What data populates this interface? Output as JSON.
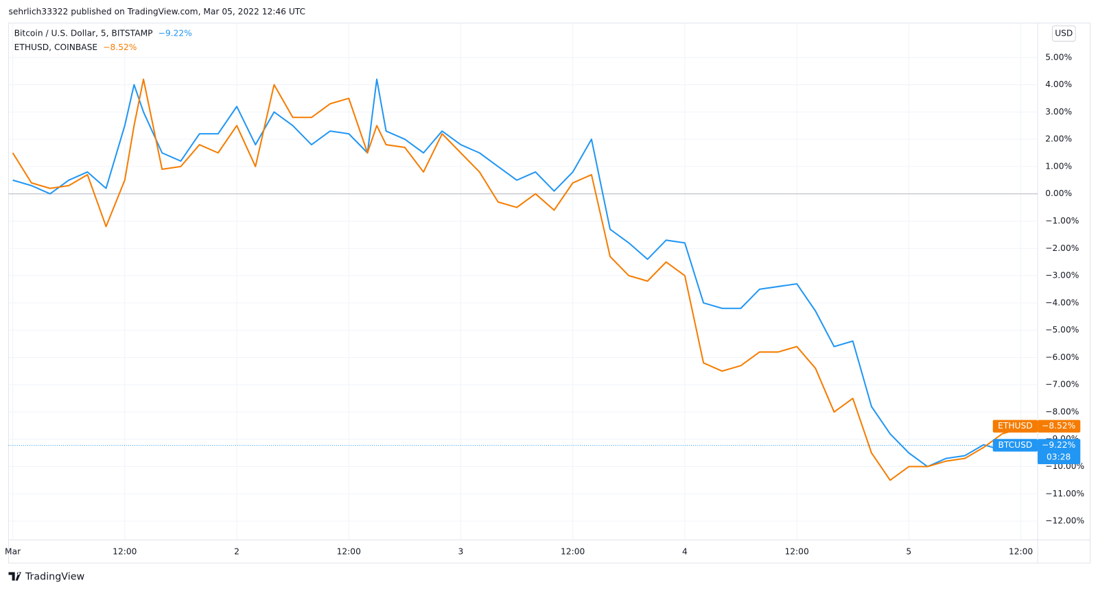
{
  "header": {
    "publisher": "sehrlich33322 published on TradingView.com, Mar 05, 2022 12:46 UTC"
  },
  "footer": {
    "brand": "TradingView"
  },
  "currency_button": "USD",
  "countdown": "03:28",
  "chart_data": {
    "type": "line",
    "x": [
      0,
      2,
      4,
      6,
      8,
      10,
      12,
      13,
      14,
      16,
      18,
      20,
      22,
      24,
      26,
      28,
      30,
      32,
      34,
      36,
      38,
      39,
      40,
      42,
      44,
      46,
      48,
      50,
      52,
      54,
      56,
      58,
      60,
      62,
      64,
      66,
      68,
      70,
      72,
      74,
      76,
      78,
      80,
      82,
      84,
      86,
      88,
      90,
      92,
      94,
      96,
      98,
      100,
      102,
      104,
      106,
      108.8
    ],
    "series": [
      {
        "name": "Bitcoin / U.S. Dollar, 5, BITSTAMP",
        "short_name": "BTCUSD",
        "color": "#2196f3",
        "change": -9.22,
        "change_label": "−9.22%",
        "values": [
          0.5,
          0.3,
          0.0,
          0.5,
          0.8,
          0.2,
          2.5,
          4.0,
          3.0,
          1.5,
          1.2,
          2.2,
          2.2,
          3.2,
          1.8,
          3.0,
          2.5,
          1.8,
          2.3,
          2.2,
          1.5,
          4.2,
          2.3,
          2.0,
          1.5,
          2.3,
          1.8,
          1.5,
          1.0,
          0.5,
          0.8,
          0.1,
          0.8,
          2.0,
          -1.3,
          -1.8,
          -2.4,
          -1.7,
          -1.8,
          -4.0,
          -4.2,
          -4.2,
          -3.5,
          -3.4,
          -3.3,
          -4.3,
          -5.6,
          -5.4,
          -7.8,
          -8.8,
          -9.5,
          -10.0,
          -9.7,
          -9.6,
          -9.2,
          -9.4,
          -9.22
        ]
      },
      {
        "name": "ETHUSD, COINBASE",
        "short_name": "ETHUSD",
        "color": "#f57c00",
        "change": -8.52,
        "change_label": "−8.52%",
        "values": [
          1.5,
          0.4,
          0.2,
          0.3,
          0.7,
          -1.2,
          0.5,
          2.5,
          4.2,
          0.9,
          1.0,
          1.8,
          1.5,
          2.5,
          1.0,
          4.0,
          2.8,
          2.8,
          3.3,
          3.5,
          1.5,
          2.5,
          1.8,
          1.7,
          0.8,
          2.2,
          1.5,
          0.8,
          -0.3,
          -0.5,
          0.0,
          -0.6,
          0.4,
          0.7,
          -2.3,
          -3.0,
          -3.2,
          -2.5,
          -3.0,
          -6.2,
          -6.5,
          -6.3,
          -5.8,
          -5.8,
          -5.6,
          -6.4,
          -8.0,
          -7.5,
          -9.5,
          -10.5,
          -10.0,
          -10.0,
          -9.8,
          -9.7,
          -9.3,
          -8.8,
          -8.52
        ]
      }
    ],
    "xlim": [
      -0.45,
      109.8
    ],
    "xticks": [
      {
        "value": 0,
        "label": "Mar"
      },
      {
        "value": 12,
        "label": "12:00"
      },
      {
        "value": 24,
        "label": "2"
      },
      {
        "value": 36,
        "label": "12:00"
      },
      {
        "value": 48,
        "label": "3"
      },
      {
        "value": 60,
        "label": "12:00"
      },
      {
        "value": 72,
        "label": "4"
      },
      {
        "value": 84,
        "label": "12:00"
      },
      {
        "value": 96,
        "label": "5"
      },
      {
        "value": 108,
        "label": "12:00"
      }
    ],
    "ylim": [
      -12.69,
      6.26
    ],
    "yticks": [
      {
        "value": 5,
        "label": "5.00%"
      },
      {
        "value": 4,
        "label": "4.00%"
      },
      {
        "value": 3,
        "label": "3.00%"
      },
      {
        "value": 2,
        "label": "2.00%"
      },
      {
        "value": 1,
        "label": "1.00%"
      },
      {
        "value": 0,
        "label": "0.00%"
      },
      {
        "value": -1,
        "label": "−1.00%"
      },
      {
        "value": -2,
        "label": "−2.00%"
      },
      {
        "value": -3,
        "label": "−3.00%"
      },
      {
        "value": -4,
        "label": "−4.00%"
      },
      {
        "value": -5,
        "label": "−5.00%"
      },
      {
        "value": -6,
        "label": "−6.00%"
      },
      {
        "value": -7,
        "label": "−7.00%"
      },
      {
        "value": -8,
        "label": "−8.00%"
      },
      {
        "value": -9,
        "label": "−9.00%"
      },
      {
        "value": -10,
        "label": "−10.00%"
      },
      {
        "value": -11,
        "label": "−11.00%"
      },
      {
        "value": -12,
        "label": "−12.00%"
      }
    ],
    "grid": true
  }
}
